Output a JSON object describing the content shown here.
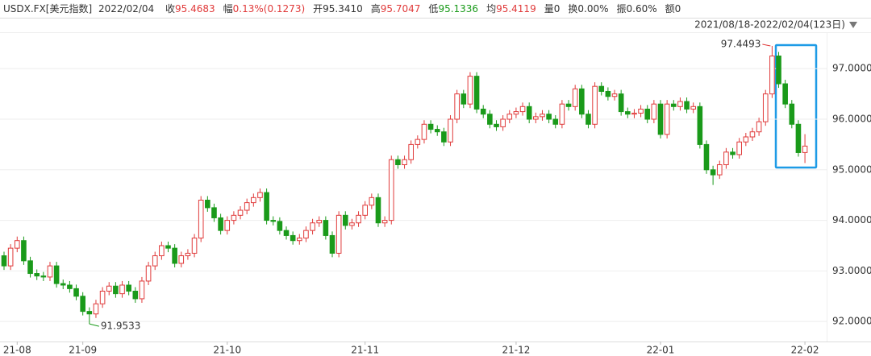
{
  "header": {
    "symbol": "USDX.FX[美元指数]",
    "date": "2022/02/04",
    "fields": [
      {
        "label": "收",
        "value": "95.4683",
        "color": "#e03a3a"
      },
      {
        "label": "幅",
        "value": "0.13%(0.1273)",
        "color": "#e03a3a"
      },
      {
        "label": "开",
        "value": "95.3410"
      },
      {
        "label": "高",
        "value": "95.7047",
        "color": "#e03a3a"
      },
      {
        "label": "低",
        "value": "95.1336",
        "color": "#1a9a1a"
      },
      {
        "label": "均",
        "value": "95.4119",
        "color": "#e03a3a"
      },
      {
        "label": "量",
        "value": "0"
      },
      {
        "label": "换",
        "value": "0.00%"
      },
      {
        "label": "振",
        "value": "0.60%"
      },
      {
        "label": "额",
        "value": "0"
      }
    ]
  },
  "chart_data": {
    "type": "candlestick",
    "range_label": "2021/08/18-2022/02/04(123日)",
    "up_color": "#e03a3a",
    "down_color": "#1a9a1a",
    "grid": true,
    "ylim": [
      91.35,
      97.72
    ],
    "yticks": [
      {
        "value": 92,
        "label": "92.0000"
      },
      {
        "value": 93,
        "label": "93.0000"
      },
      {
        "value": 94,
        "label": "94.0000"
      },
      {
        "value": 95,
        "label": "95.0000"
      },
      {
        "value": 96,
        "label": "96.0000"
      },
      {
        "value": 97,
        "label": "97.0000"
      }
    ],
    "max_annotation": 97.4493,
    "min_annotation": 91.9533,
    "categories": [
      null,
      null,
      "21-08",
      null,
      null,
      null,
      null,
      null,
      null,
      null,
      null,
      null,
      "21-09",
      null,
      null,
      null,
      null,
      null,
      null,
      null,
      null,
      null,
      null,
      null,
      null,
      null,
      null,
      null,
      null,
      null,
      null,
      null,
      null,
      null,
      "21-10",
      null,
      null,
      null,
      null,
      null,
      null,
      null,
      null,
      null,
      null,
      null,
      null,
      null,
      null,
      null,
      null,
      null,
      null,
      null,
      null,
      "21-11",
      null,
      null,
      null,
      null,
      null,
      null,
      null,
      null,
      null,
      null,
      null,
      null,
      null,
      null,
      null,
      null,
      null,
      null,
      null,
      null,
      null,
      null,
      "21-12",
      null,
      null,
      null,
      null,
      null,
      null,
      null,
      null,
      null,
      null,
      null,
      null,
      null,
      null,
      null,
      null,
      null,
      null,
      null,
      null,
      null,
      "22-01",
      null,
      null,
      null,
      null,
      null,
      null,
      null,
      null,
      null,
      null,
      null,
      null,
      null,
      null,
      null,
      null,
      null,
      null,
      null,
      null,
      null,
      "22-02"
    ],
    "open": [
      93.3,
      93.1,
      93.45,
      93.6,
      93.2,
      92.95,
      92.9,
      92.88,
      93.1,
      92.75,
      92.72,
      92.65,
      92.5,
      92.2,
      92.15,
      92.35,
      92.6,
      92.7,
      92.55,
      92.72,
      92.6,
      92.45,
      92.8,
      93.1,
      93.3,
      93.5,
      93.45,
      93.15,
      93.3,
      93.35,
      93.65,
      94.4,
      94.25,
      94.05,
      93.8,
      94.0,
      94.1,
      94.2,
      94.35,
      94.45,
      94.55,
      94.0,
      93.98,
      93.8,
      93.7,
      93.6,
      93.65,
      93.8,
      93.95,
      94.0,
      93.7,
      93.35,
      94.1,
      93.9,
      93.95,
      94.1,
      94.3,
      94.45,
      93.95,
      94.0,
      95.2,
      95.1,
      95.2,
      95.5,
      95.6,
      95.9,
      95.8,
      95.75,
      95.55,
      96.0,
      96.5,
      96.3,
      96.85,
      96.2,
      96.1,
      95.9,
      95.85,
      96.0,
      96.1,
      96.15,
      96.25,
      96.0,
      96.05,
      96.1,
      96.0,
      95.9,
      96.3,
      96.25,
      96.6,
      96.1,
      95.9,
      96.65,
      96.55,
      96.45,
      96.5,
      96.15,
      96.1,
      96.12,
      96.2,
      96.0,
      96.3,
      95.7,
      96.3,
      96.25,
      96.35,
      96.2,
      96.25,
      95.5,
      95.0,
      94.9,
      95.1,
      95.35,
      95.3,
      95.55,
      95.65,
      95.75,
      95.95,
      96.5,
      97.25,
      96.7,
      96.3,
      95.9,
      95.341
    ],
    "high": [
      93.38,
      93.53,
      93.68,
      93.68,
      93.28,
      93.03,
      92.98,
      93.18,
      93.18,
      92.83,
      92.8,
      92.73,
      92.58,
      92.28,
      92.43,
      92.68,
      92.78,
      92.78,
      92.8,
      92.8,
      92.68,
      92.88,
      93.18,
      93.38,
      93.58,
      93.58,
      93.53,
      93.38,
      93.43,
      93.73,
      94.48,
      94.48,
      94.33,
      94.13,
      94.08,
      94.18,
      94.28,
      94.43,
      94.53,
      94.63,
      94.63,
      94.08,
      94.06,
      93.88,
      93.78,
      93.73,
      93.88,
      94.03,
      94.08,
      94.08,
      93.78,
      94.18,
      94.18,
      94.03,
      94.18,
      94.38,
      94.53,
      94.53,
      94.08,
      95.28,
      95.28,
      95.28,
      95.58,
      95.68,
      95.98,
      95.98,
      95.88,
      95.83,
      96.08,
      96.58,
      96.58,
      96.93,
      96.93,
      96.28,
      96.18,
      95.98,
      96.08,
      96.18,
      96.23,
      96.33,
      96.33,
      96.13,
      96.18,
      96.18,
      96.08,
      96.38,
      96.38,
      96.68,
      96.68,
      96.18,
      96.73,
      96.73,
      96.63,
      96.58,
      96.58,
      96.23,
      96.2,
      96.28,
      96.28,
      96.38,
      96.38,
      96.38,
      96.38,
      96.43,
      96.43,
      96.33,
      96.33,
      95.58,
      95.08,
      95.18,
      95.43,
      95.43,
      95.63,
      95.73,
      95.83,
      96.03,
      96.58,
      97.4493,
      97.33,
      96.78,
      96.38,
      95.98,
      95.7047
    ],
    "low": [
      93.02,
      93.02,
      93.37,
      93.12,
      92.87,
      92.82,
      92.8,
      92.8,
      92.67,
      92.64,
      92.57,
      92.42,
      92.12,
      91.9533,
      92.07,
      92.27,
      92.52,
      92.47,
      92.47,
      92.52,
      92.37,
      92.37,
      92.72,
      93.02,
      93.22,
      93.37,
      93.07,
      93.07,
      93.22,
      93.27,
      93.57,
      94.17,
      93.97,
      93.72,
      93.72,
      93.92,
      94.02,
      94.12,
      94.27,
      94.37,
      93.92,
      93.9,
      93.72,
      93.62,
      93.52,
      93.52,
      93.57,
      93.72,
      93.87,
      93.62,
      93.27,
      93.27,
      93.82,
      93.82,
      93.87,
      94.02,
      94.22,
      93.87,
      93.87,
      93.92,
      95.02,
      95.02,
      95.12,
      95.42,
      95.52,
      95.72,
      95.67,
      95.47,
      95.47,
      95.92,
      96.22,
      96.22,
      96.12,
      96.02,
      95.82,
      95.77,
      95.77,
      95.92,
      96.02,
      96.07,
      95.92,
      95.92,
      95.97,
      95.92,
      95.82,
      95.82,
      96.17,
      96.17,
      96.02,
      95.82,
      95.82,
      96.47,
      96.37,
      96.37,
      96.07,
      96.02,
      96.02,
      96.04,
      95.92,
      95.92,
      95.62,
      95.62,
      96.17,
      96.17,
      96.12,
      96.12,
      95.42,
      94.92,
      94.7,
      94.82,
      95.02,
      95.22,
      95.22,
      95.47,
      95.57,
      95.67,
      95.87,
      96.42,
      96.62,
      96.22,
      95.82,
      95.26,
      95.1336
    ],
    "close": [
      93.1,
      93.45,
      93.6,
      93.2,
      92.95,
      92.9,
      92.88,
      93.1,
      92.75,
      92.72,
      92.65,
      92.5,
      92.2,
      92.15,
      92.35,
      92.6,
      92.7,
      92.55,
      92.72,
      92.6,
      92.45,
      92.8,
      93.1,
      93.3,
      93.5,
      93.45,
      93.15,
      93.3,
      93.35,
      93.65,
      94.4,
      94.25,
      94.05,
      93.8,
      94.0,
      94.1,
      94.2,
      94.35,
      94.45,
      94.55,
      94.0,
      93.98,
      93.8,
      93.7,
      93.6,
      93.65,
      93.8,
      93.95,
      94.0,
      93.7,
      93.35,
      94.1,
      93.9,
      93.95,
      94.1,
      94.3,
      94.45,
      93.95,
      94.0,
      95.2,
      95.1,
      95.2,
      95.5,
      95.6,
      95.9,
      95.8,
      95.75,
      95.55,
      96.0,
      96.5,
      96.3,
      96.85,
      96.2,
      96.1,
      95.9,
      95.85,
      96.0,
      96.1,
      96.15,
      96.25,
      96.0,
      96.05,
      96.1,
      96.0,
      95.9,
      96.3,
      96.25,
      96.6,
      96.1,
      95.9,
      96.65,
      96.55,
      96.45,
      96.5,
      96.15,
      96.1,
      96.12,
      96.2,
      96.0,
      96.3,
      95.7,
      96.3,
      96.25,
      96.35,
      96.2,
      96.25,
      95.5,
      95.0,
      94.9,
      95.1,
      95.35,
      95.3,
      95.55,
      95.65,
      95.75,
      95.95,
      96.5,
      97.25,
      96.7,
      96.3,
      95.9,
      95.34,
      95.4683
    ]
  }
}
